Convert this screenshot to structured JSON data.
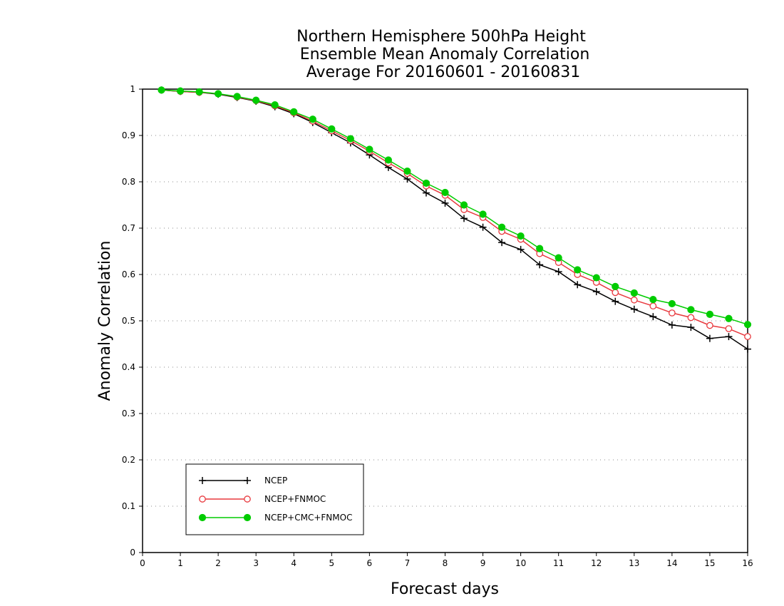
{
  "chart_data": {
    "type": "line",
    "title": [
      "Northern Hemisphere 500hPa Height",
      "Ensemble Mean Anomaly Correlation",
      "Average For 20160601 - 20160831"
    ],
    "xlabel": "Forecast days",
    "ylabel": "Anomaly Correlation",
    "xlim": [
      0,
      16
    ],
    "ylim": [
      0,
      1
    ],
    "xticks": [
      "0",
      "1",
      "2",
      "3",
      "4",
      "5",
      "6",
      "7",
      "8",
      "9",
      "10",
      "11",
      "12",
      "13",
      "14",
      "15",
      "16"
    ],
    "yticks": [
      "0",
      "0.1",
      "0.2",
      "0.3",
      "0.4",
      "0.5",
      "0.6",
      "0.7",
      "0.8",
      "0.9",
      "1"
    ],
    "grid": "horizontal dotted",
    "legend_position": "bottom-left",
    "x": [
      0.5,
      1,
      1.5,
      2,
      2.5,
      3,
      3.5,
      4,
      4.5,
      5,
      5.5,
      6,
      6.5,
      7,
      7.5,
      8,
      8.5,
      9,
      9.5,
      10,
      10.5,
      11,
      11.5,
      12,
      12.5,
      13,
      13.5,
      14,
      14.5,
      15,
      15.5,
      16
    ],
    "series": [
      {
        "name": "NCEP",
        "color": "#000000",
        "marker": "plus",
        "values": [
          0.998,
          0.995,
          0.993,
          0.989,
          0.982,
          0.974,
          0.962,
          0.947,
          0.928,
          0.906,
          0.884,
          0.858,
          0.831,
          0.806,
          0.776,
          0.754,
          0.721,
          0.702,
          0.669,
          0.654,
          0.621,
          0.606,
          0.578,
          0.563,
          0.542,
          0.525,
          0.509,
          0.491,
          0.486,
          0.462,
          0.466,
          0.439
        ]
      },
      {
        "name": "NCEP+FNMOC",
        "color": "#e8383d",
        "marker": "open-circle",
        "values": [
          0.998,
          0.995,
          0.993,
          0.99,
          0.983,
          0.975,
          0.964,
          0.949,
          0.931,
          0.91,
          0.889,
          0.866,
          0.841,
          0.818,
          0.791,
          0.771,
          0.74,
          0.723,
          0.693,
          0.676,
          0.645,
          0.626,
          0.6,
          0.583,
          0.561,
          0.545,
          0.532,
          0.517,
          0.507,
          0.49,
          0.483,
          0.466
        ]
      },
      {
        "name": "NCEP+CMC+FNMOC",
        "color": "#00cc00",
        "marker": "filled-circle",
        "values": [
          0.998,
          0.996,
          0.994,
          0.99,
          0.984,
          0.976,
          0.966,
          0.951,
          0.935,
          0.914,
          0.893,
          0.87,
          0.847,
          0.823,
          0.797,
          0.777,
          0.75,
          0.73,
          0.702,
          0.683,
          0.656,
          0.636,
          0.61,
          0.593,
          0.574,
          0.56,
          0.546,
          0.537,
          0.524,
          0.514,
          0.505,
          0.492
        ]
      }
    ]
  }
}
